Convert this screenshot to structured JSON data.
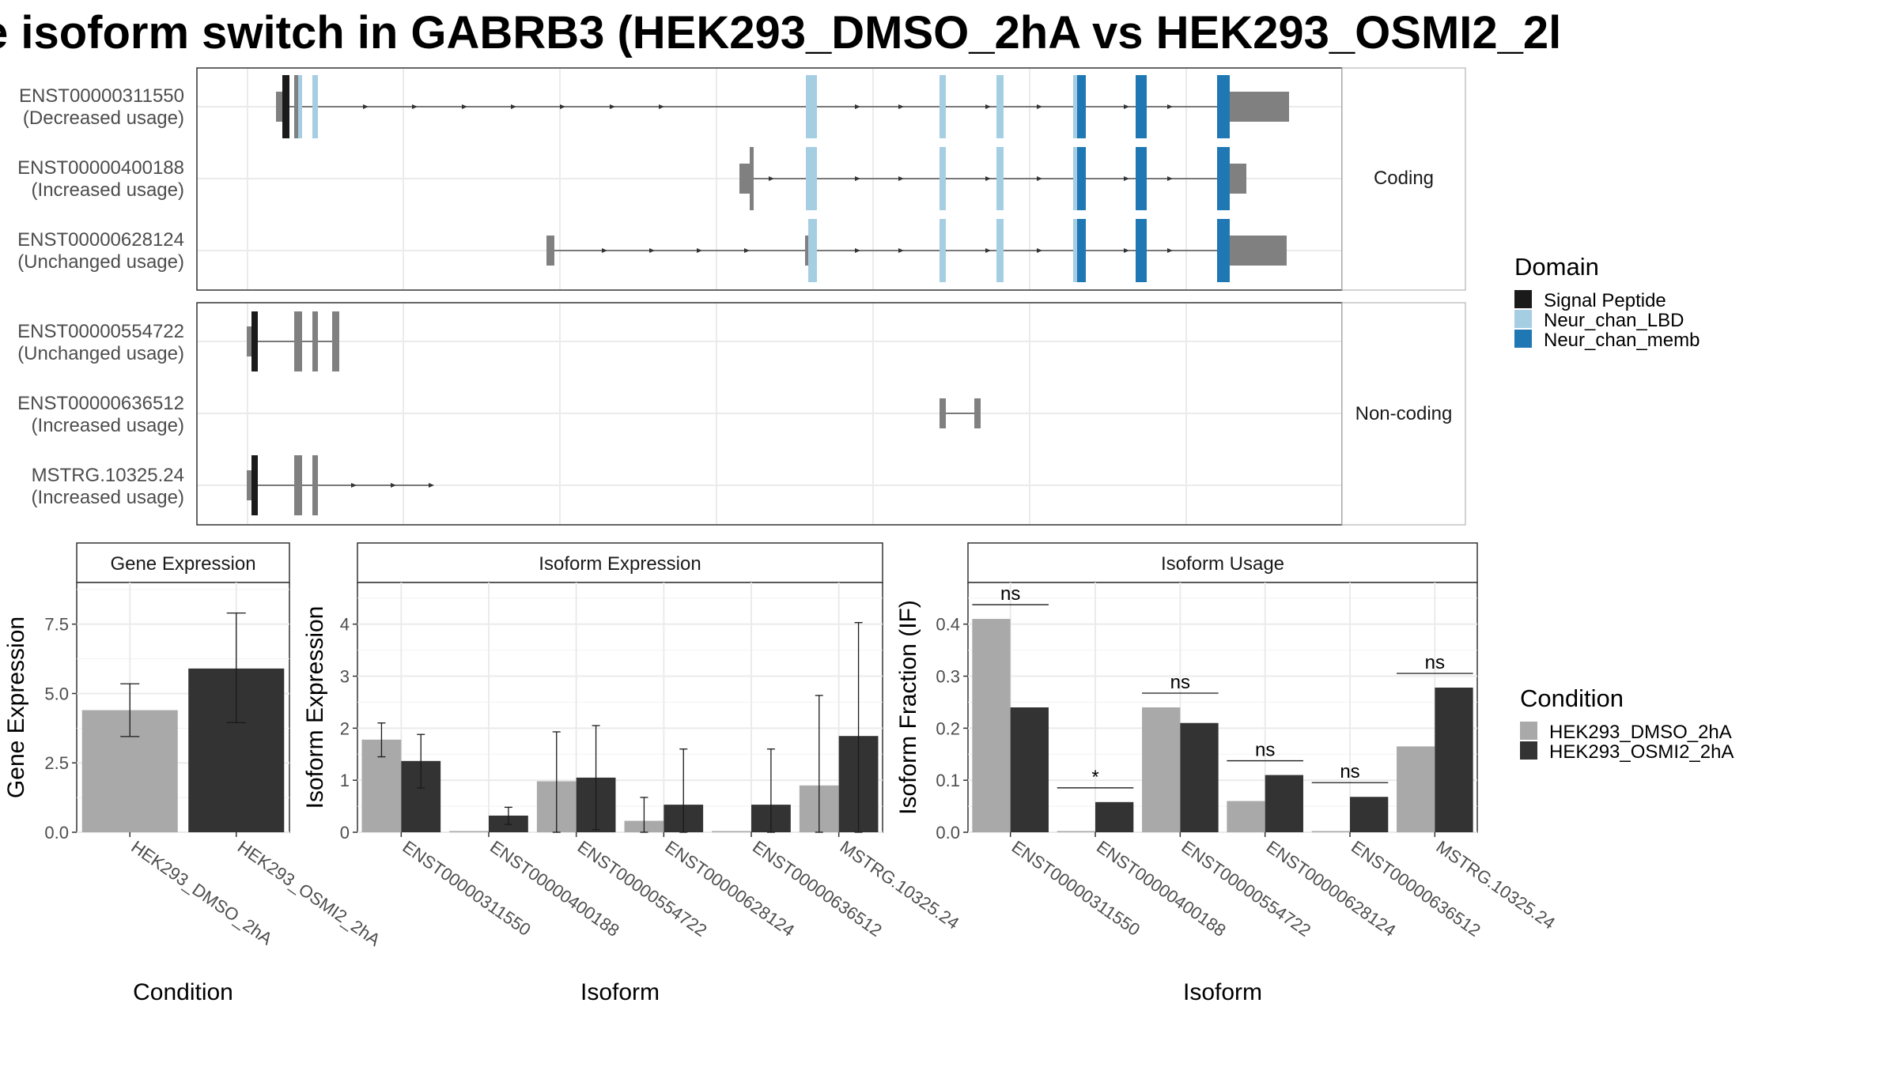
{
  "title": "e isoform switch in GABRB3 (HEK293_DMSO_2hA vs HEK293_OSMI2_2l",
  "colors": {
    "signal_peptide": "#1a1a1a",
    "neur_chan_lbd": "#a6cee3",
    "neur_chan_memb": "#1f78b4",
    "noncoding_exon": "#808080",
    "dmso": "#a9a9a9",
    "osmi2": "#333333"
  },
  "transcripts": {
    "coding_label": "Coding",
    "noncoding_label": "Non-coding",
    "coding": [
      {
        "id": "ENST00000311550",
        "usage": "(Decreased usage)"
      },
      {
        "id": "ENST00000400188",
        "usage": "(Increased usage)"
      },
      {
        "id": "ENST00000628124",
        "usage": "(Unchanged usage)"
      }
    ],
    "noncoding": [
      {
        "id": "ENST00000554722",
        "usage": "(Unchanged usage)"
      },
      {
        "id": "ENST00000636512",
        "usage": "(Increased usage)"
      },
      {
        "id": "MSTRG.10325.24",
        "usage": "(Increased usage)"
      }
    ]
  },
  "domain_legend": {
    "title": "Domain",
    "items": [
      {
        "label": "Signal Peptide",
        "color": "#1a1a1a"
      },
      {
        "label": "Neur_chan_LBD",
        "color": "#a6cee3"
      },
      {
        "label": "Neur_chan_memb",
        "color": "#1f78b4"
      }
    ]
  },
  "condition_legend": {
    "title": "Condition",
    "items": [
      {
        "label": "HEK293_DMSO_2hA",
        "color": "#a9a9a9"
      },
      {
        "label": "HEK293_OSMI2_2hA",
        "color": "#333333"
      }
    ]
  },
  "chart_data": [
    {
      "type": "bar",
      "title": "Gene Expression",
      "xlabel": "Condition",
      "ylabel": "Gene Expression",
      "ylim": [
        0,
        9.0
      ],
      "yticks": [
        0.0,
        2.5,
        5.0,
        7.5
      ],
      "ytick_labels": [
        "0.0",
        "2.5",
        "5.0",
        "7.5"
      ],
      "categories": [
        "HEK293_DMSO_2hA",
        "HEK293_OSMI2_2hA"
      ],
      "values": [
        4.4,
        5.9
      ],
      "error_low": [
        3.45,
        3.95
      ],
      "error_high": [
        5.35,
        7.9
      ],
      "colors": [
        "#a9a9a9",
        "#333333"
      ]
    },
    {
      "type": "bar",
      "title": "Isoform Expression",
      "xlabel": "Isoform",
      "ylabel": "Isoform Expression",
      "ylim": [
        0,
        4.8
      ],
      "yticks": [
        0,
        1,
        2,
        3,
        4
      ],
      "ytick_labels": [
        "0",
        "1",
        "2",
        "3",
        "4"
      ],
      "categories": [
        "ENST00000311550",
        "ENST00000400188",
        "ENST00000554722",
        "ENST00000628124",
        "ENST00000636512",
        "MSTRG.10325.24"
      ],
      "series": [
        {
          "name": "HEK293_DMSO_2hA",
          "values": [
            1.78,
            0.0,
            0.98,
            0.22,
            0.0,
            0.9
          ],
          "error_low": [
            1.45,
            0.0,
            0.0,
            0.0,
            0.0,
            0.0
          ],
          "error_high": [
            2.1,
            0.0,
            1.93,
            0.67,
            0.0,
            2.63
          ]
        },
        {
          "name": "HEK293_OSMI2_2hA",
          "values": [
            1.37,
            0.32,
            1.05,
            0.53,
            0.53,
            1.85
          ],
          "error_low": [
            0.85,
            0.15,
            0.05,
            0.0,
            0.0,
            0.0
          ],
          "error_high": [
            1.88,
            0.48,
            2.05,
            1.6,
            1.6,
            4.03
          ]
        }
      ]
    },
    {
      "type": "bar",
      "title": "Isoform Usage",
      "xlabel": "Isoform",
      "ylabel": "Isoform Fraction (IF)",
      "ylim": [
        0,
        0.48
      ],
      "yticks": [
        0.0,
        0.1,
        0.2,
        0.3,
        0.4
      ],
      "ytick_labels": [
        "0.0",
        "0.1",
        "0.2",
        "0.3",
        "0.4"
      ],
      "categories": [
        "ENST00000311550",
        "ENST00000400188",
        "ENST00000554722",
        "ENST00000628124",
        "ENST00000636512",
        "MSTRG.10325.24"
      ],
      "series": [
        {
          "name": "HEK293_DMSO_2hA",
          "values": [
            0.41,
            0.0,
            0.24,
            0.06,
            0.0,
            0.165
          ]
        },
        {
          "name": "HEK293_OSMI2_2hA",
          "values": [
            0.24,
            0.058,
            0.21,
            0.11,
            0.068,
            0.278
          ]
        }
      ],
      "significance": [
        "ns",
        "*",
        "ns",
        "ns",
        "ns",
        "ns"
      ]
    }
  ]
}
